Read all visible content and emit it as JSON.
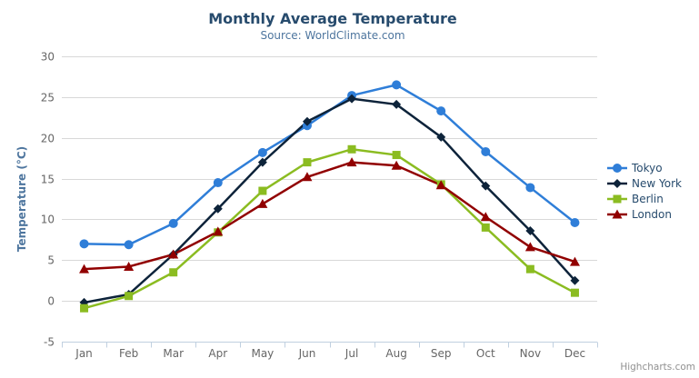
{
  "chart": {
    "credit": "Highcharts.com"
  },
  "export_menu": {
    "icon": "hamburger-icon"
  },
  "chart_data": {
    "type": "line",
    "title": "Monthly Average Temperature",
    "subtitle": "Source: WorldClimate.com",
    "xlabel": "",
    "ylabel": "Temperature (°C)",
    "categories": [
      "Jan",
      "Feb",
      "Mar",
      "Apr",
      "May",
      "Jun",
      "Jul",
      "Aug",
      "Sep",
      "Oct",
      "Nov",
      "Dec"
    ],
    "yticks": [
      -5,
      0,
      5,
      10,
      15,
      20,
      25,
      30
    ],
    "ylim": [
      -5,
      30
    ],
    "grid": "horizontal",
    "legend_position": "right",
    "series": [
      {
        "name": "Tokyo",
        "color": "#2f7ed8",
        "marker": "circle",
        "values": [
          7.0,
          6.9,
          9.5,
          14.5,
          18.2,
          21.5,
          25.2,
          26.5,
          23.3,
          18.3,
          13.9,
          9.6
        ]
      },
      {
        "name": "New York",
        "color": "#0d233a",
        "marker": "diamond",
        "values": [
          -0.2,
          0.8,
          5.7,
          11.3,
          17.0,
          22.0,
          24.8,
          24.1,
          20.1,
          14.1,
          8.6,
          2.5
        ]
      },
      {
        "name": "Berlin",
        "color": "#8bbc21",
        "marker": "square",
        "values": [
          -0.9,
          0.6,
          3.5,
          8.4,
          13.5,
          17.0,
          18.6,
          17.9,
          14.3,
          9.0,
          3.9,
          1.0
        ]
      },
      {
        "name": "London",
        "color": "#910000",
        "marker": "triangle",
        "values": [
          3.9,
          4.2,
          5.7,
          8.5,
          11.9,
          15.2,
          17.0,
          16.6,
          14.2,
          10.3,
          6.6,
          4.8
        ]
      }
    ],
    "axis_colors": {
      "axis_line": "#c0d0e0",
      "grid_line": "#d8d8d8",
      "labels": "#666666",
      "axis_title": "#4d759e"
    }
  }
}
